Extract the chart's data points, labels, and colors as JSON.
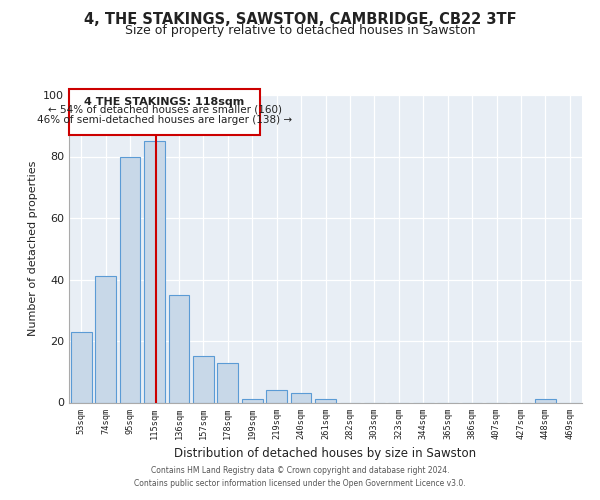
{
  "title": "4, THE STAKINGS, SAWSTON, CAMBRIDGE, CB22 3TF",
  "subtitle": "Size of property relative to detached houses in Sawston",
  "xlabel": "Distribution of detached houses by size in Sawston",
  "ylabel": "Number of detached properties",
  "bar_color": "#c8d8e8",
  "bar_edge_color": "#5b9bd5",
  "background_color": "#e8eef5",
  "grid_color": "#ffffff",
  "categories": [
    "53sqm",
    "74sqm",
    "95sqm",
    "115sqm",
    "136sqm",
    "157sqm",
    "178sqm",
    "199sqm",
    "219sqm",
    "240sqm",
    "261sqm",
    "282sqm",
    "303sqm",
    "323sqm",
    "344sqm",
    "365sqm",
    "386sqm",
    "407sqm",
    "427sqm",
    "448sqm",
    "469sqm"
  ],
  "values": [
    23,
    41,
    80,
    85,
    35,
    15,
    13,
    1,
    4,
    3,
    1,
    0,
    0,
    0,
    0,
    0,
    0,
    0,
    0,
    1,
    0
  ],
  "ylim": [
    0,
    100
  ],
  "yticks": [
    0,
    20,
    40,
    60,
    80,
    100
  ],
  "annotation_title": "4 THE STAKINGS: 118sqm",
  "annotation_line1": "← 54% of detached houses are smaller (160)",
  "annotation_line2": "46% of semi-detached houses are larger (138) →",
  "marker_bar_index": 3,
  "marker_color": "#cc0000",
  "footer_line1": "Contains HM Land Registry data © Crown copyright and database right 2024.",
  "footer_line2": "Contains public sector information licensed under the Open Government Licence v3.0."
}
